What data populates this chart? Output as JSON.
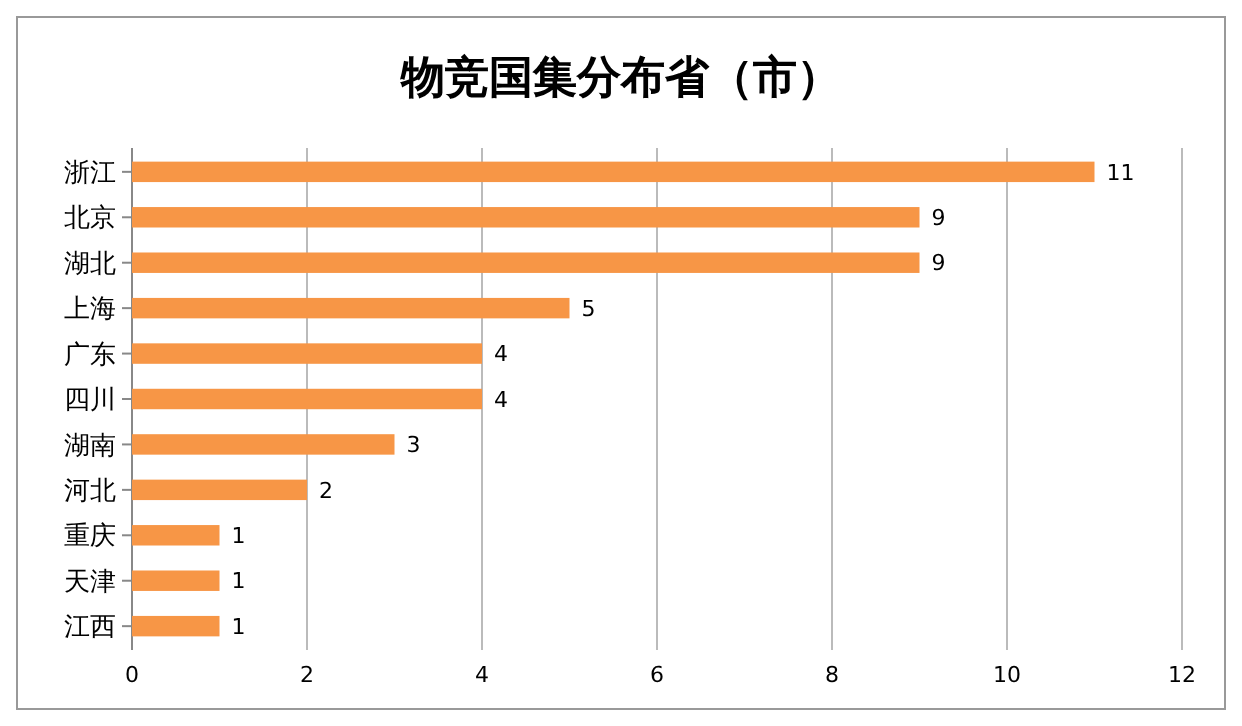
{
  "chart_data": {
    "type": "bar",
    "orientation": "horizontal",
    "title": "物竞国集分布省（市）",
    "categories": [
      "浙江",
      "北京",
      "湖北",
      "上海",
      "广东",
      "四川",
      "湖南",
      "河北",
      "重庆",
      "天津",
      "江西"
    ],
    "values": [
      11,
      9,
      9,
      5,
      4,
      4,
      3,
      2,
      1,
      1,
      1
    ],
    "color": "#f79646",
    "xlim": [
      0,
      12
    ],
    "xticks": [
      0,
      2,
      4,
      6,
      8,
      10,
      12
    ],
    "grid": "x",
    "data_labels": true
  }
}
